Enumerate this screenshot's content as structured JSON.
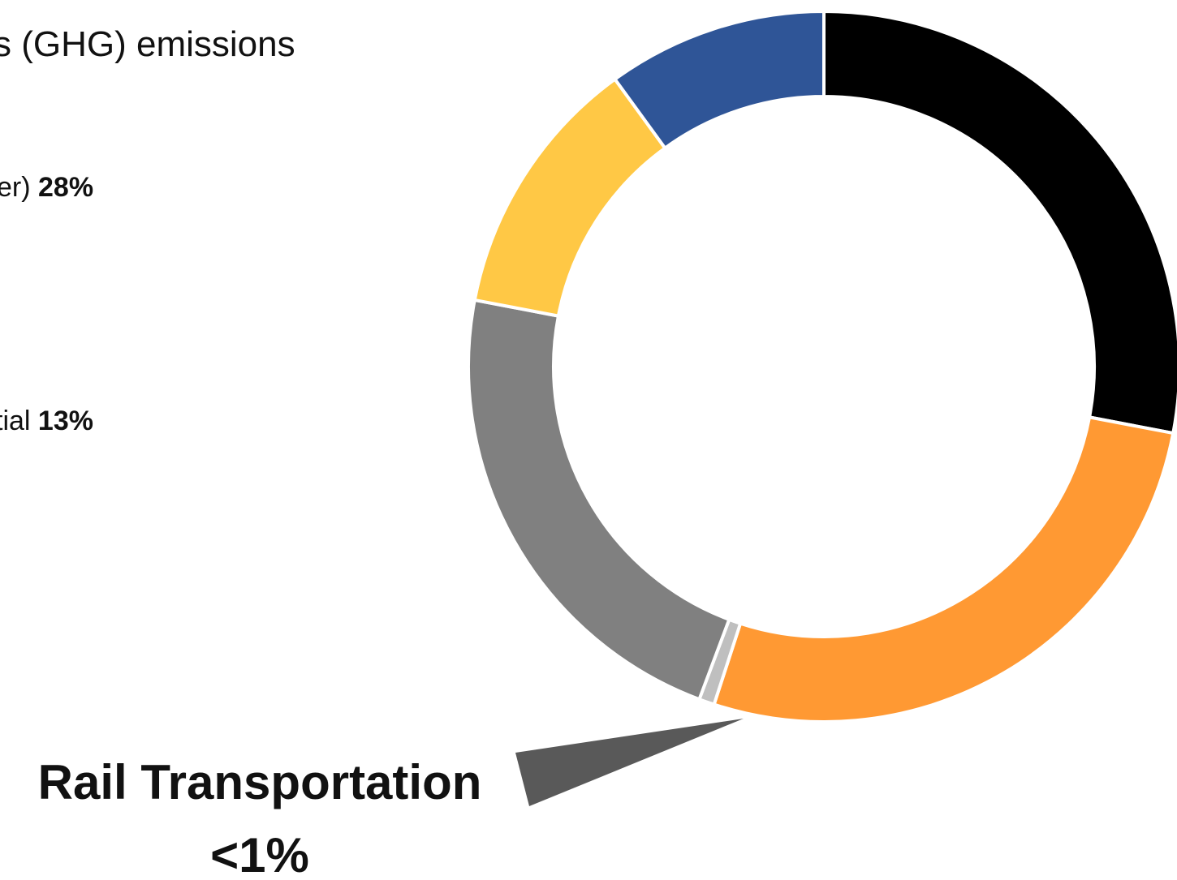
{
  "header": {
    "subtitle": "s (GHG) emissions"
  },
  "legend": {
    "line_a": {
      "text": "er) ",
      "value": "28%"
    },
    "line_b": {
      "text": "tial ",
      "value": "13%"
    }
  },
  "callout": {
    "label": "Rail Transportation",
    "value": "<1%",
    "pointer_color": "#595959"
  },
  "chart_data": {
    "type": "pie",
    "style": "donut",
    "title": "",
    "slices": [
      {
        "label": "",
        "value": 28,
        "color": "#000000"
      },
      {
        "label": "",
        "value": 27,
        "color": "#FF9933"
      },
      {
        "label": "Rail Transportation",
        "value": 0.7,
        "color": "#BFBFBF"
      },
      {
        "label": "",
        "value": 22.3,
        "color": "#808080"
      },
      {
        "label": "",
        "value": 12,
        "color": "#FFC845"
      },
      {
        "label": "",
        "value": 10,
        "color": "#2F5597"
      }
    ]
  }
}
